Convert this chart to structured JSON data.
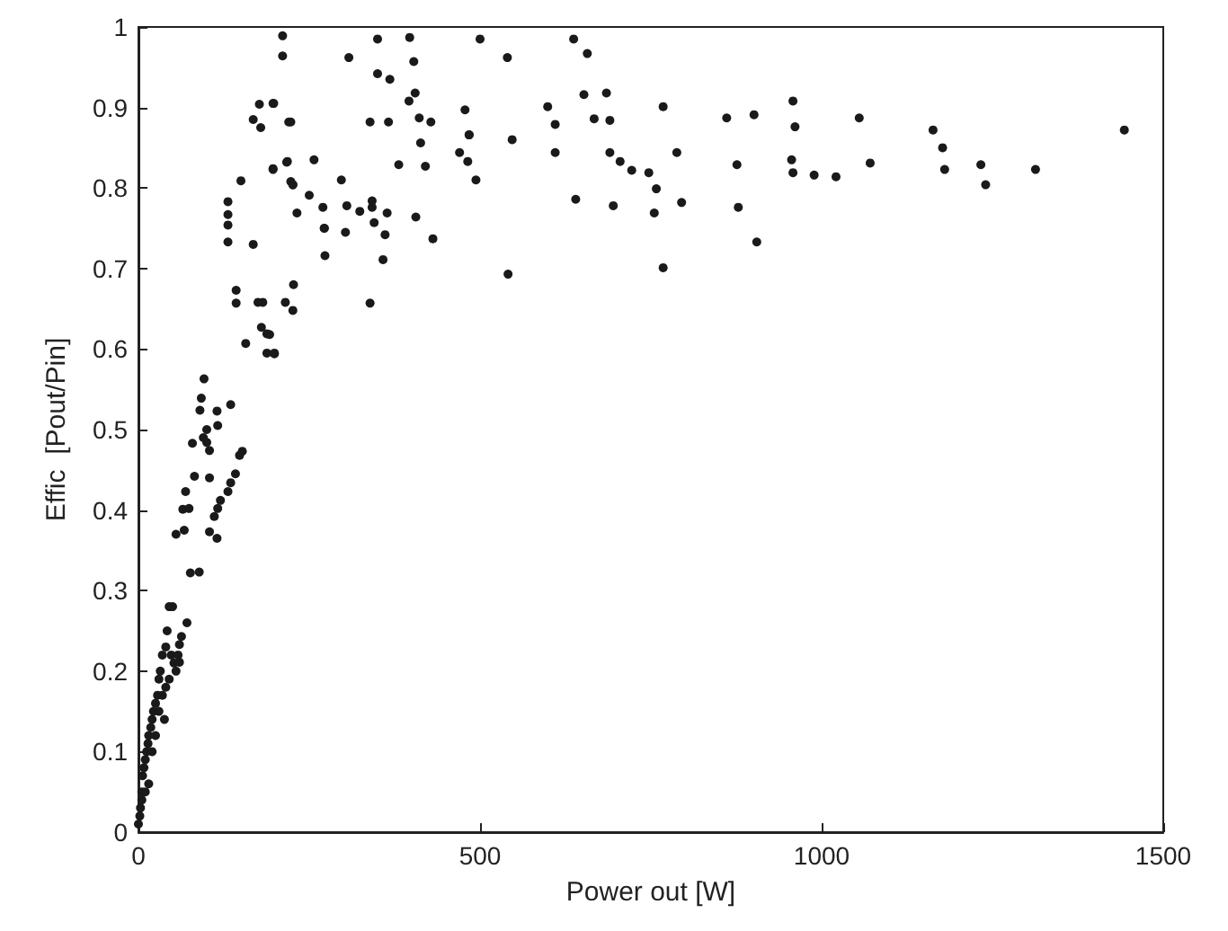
{
  "chart_data": {
    "type": "scatter",
    "xlabel": "Power out [W]",
    "ylabel": "Effic  [Pout/Pin]",
    "xlim": [
      0,
      1500
    ],
    "xticks": [
      0,
      500,
      1000,
      1500
    ],
    "ylim": [
      0,
      1
    ],
    "yticks": [
      0,
      0.1,
      0.2,
      0.3,
      0.4,
      0.5,
      0.6,
      0.7,
      0.8,
      0.9,
      1
    ],
    "marker": "circle",
    "series": [
      {
        "color": "#1a1a1a",
        "x": [
          0,
          2,
          3,
          5,
          5,
          6,
          8,
          10,
          10,
          12,
          14,
          15,
          15,
          18,
          20,
          20,
          22,
          25,
          25,
          28,
          30,
          30,
          32,
          35,
          35,
          38,
          40,
          40,
          42,
          45,
          45,
          48,
          50,
          52,
          55,
          55,
          58,
          63,
          60,
          60,
          71,
          76,
          89,
          67,
          104,
          115,
          65,
          74,
          69,
          111,
          116,
          120,
          82,
          104,
          142,
          135,
          131,
          79,
          100,
          104,
          152,
          148,
          95,
          100,
          116,
          115,
          90,
          92,
          96,
          135,
          150,
          131,
          131,
          131,
          131,
          168,
          143,
          143,
          175,
          182,
          180,
          188,
          157,
          188,
          199,
          197,
          217,
          223,
          177,
          197,
          168,
          179,
          223,
          211,
          211,
          350,
          397,
          500,
          308,
          403,
          350,
          368,
          405,
          396,
          198,
          220,
          339,
          366,
          411,
          428,
          478,
          484,
          484,
          413,
          470,
          482,
          420,
          381,
          218,
          257,
          197,
          297,
          494,
          226,
          226,
          250,
          232,
          270,
          305,
          324,
          342,
          342,
          364,
          345,
          272,
          272,
          303,
          361,
          406,
          431,
          273,
          358,
          227,
          215,
          226,
          339,
          192,
          199,
          541,
          540,
          637,
          657,
          652,
          685,
          599,
          610,
          667,
          690,
          547,
          610,
          690,
          705,
          722,
          747,
          758,
          755,
          640,
          695,
          795,
          788,
          768,
          768,
          861,
          901,
          876,
          878,
          905,
          958,
          961,
          956,
          958,
          989,
          1021,
          1055,
          1071,
          1163,
          1177,
          1180,
          1233,
          1240,
          1313,
          1443
        ],
        "values": [
          0.01,
          0.02,
          0.03,
          0.04,
          0.05,
          0.07,
          0.08,
          0.05,
          0.09,
          0.1,
          0.11,
          0.06,
          0.12,
          0.13,
          0.1,
          0.14,
          0.15,
          0.12,
          0.16,
          0.17,
          0.15,
          0.19,
          0.2,
          0.17,
          0.22,
          0.14,
          0.18,
          0.23,
          0.25,
          0.19,
          0.28,
          0.22,
          0.28,
          0.21,
          0.2,
          0.37,
          0.22,
          0.243,
          0.233,
          0.211,
          0.26,
          0.322,
          0.323,
          0.375,
          0.373,
          0.365,
          0.401,
          0.402,
          0.423,
          0.392,
          0.402,
          0.412,
          0.442,
          0.44,
          0.445,
          0.434,
          0.423,
          0.483,
          0.484,
          0.474,
          0.473,
          0.468,
          0.49,
          0.5,
          0.505,
          0.523,
          0.524,
          0.539,
          0.563,
          0.531,
          0.809,
          0.783,
          0.767,
          0.754,
          0.733,
          0.73,
          0.673,
          0.657,
          0.658,
          0.658,
          0.627,
          0.619,
          0.607,
          0.595,
          0.595,
          0.824,
          0.832,
          0.808,
          0.904,
          0.905,
          0.885,
          0.875,
          0.882,
          0.989,
          0.964,
          0.985,
          0.987,
          0.985,
          0.962,
          0.957,
          0.942,
          0.935,
          0.918,
          0.908,
          0.905,
          0.882,
          0.882,
          0.882,
          0.887,
          0.882,
          0.897,
          0.866,
          0.866,
          0.856,
          0.844,
          0.833,
          0.827,
          0.829,
          0.833,
          0.835,
          0.823,
          0.81,
          0.81,
          0.804,
          0.804,
          0.791,
          0.769,
          0.776,
          0.778,
          0.771,
          0.784,
          0.776,
          0.769,
          0.757,
          0.75,
          0.75,
          0.745,
          0.742,
          0.764,
          0.737,
          0.716,
          0.711,
          0.68,
          0.658,
          0.648,
          0.657,
          0.618,
          0.594,
          0.693,
          0.962,
          0.985,
          0.967,
          0.916,
          0.918,
          0.901,
          0.879,
          0.886,
          0.884,
          0.86,
          0.844,
          0.844,
          0.833,
          0.822,
          0.819,
          0.799,
          0.769,
          0.786,
          0.778,
          0.782,
          0.844,
          0.901,
          0.701,
          0.887,
          0.891,
          0.829,
          0.776,
          0.733,
          0.908,
          0.876,
          0.835,
          0.819,
          0.816,
          0.814,
          0.887,
          0.831,
          0.872,
          0.85,
          0.823,
          0.829,
          0.804,
          0.823,
          0.872
        ]
      }
    ]
  }
}
